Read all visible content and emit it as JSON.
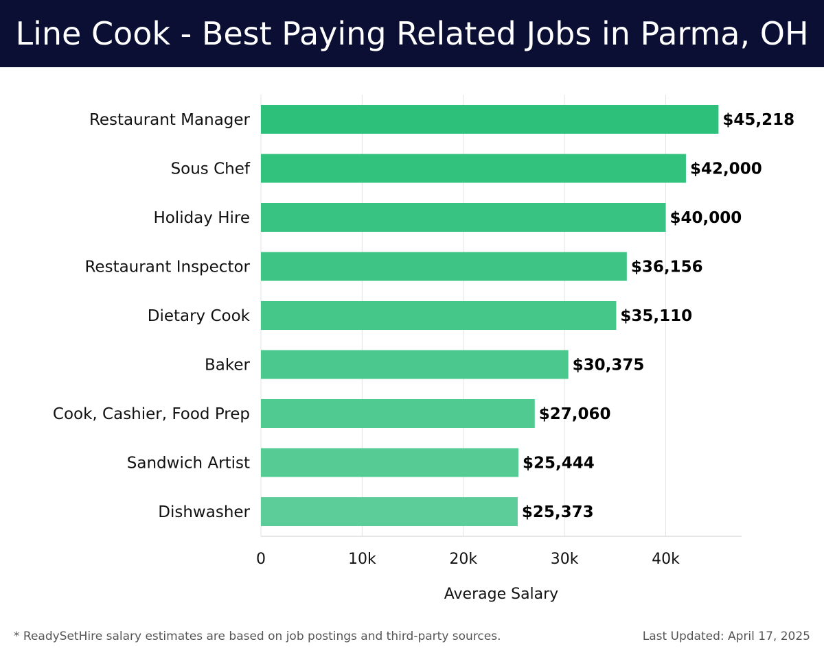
{
  "header": {
    "title": "Line Cook - Best Paying Related Jobs in Parma, OH"
  },
  "chart_data": {
    "type": "bar",
    "orientation": "horizontal",
    "categories": [
      "Restaurant Manager",
      "Sous Chef",
      "Holiday Hire",
      "Restaurant Inspector",
      "Dietary Cook",
      "Baker",
      "Cook, Cashier, Food Prep",
      "Sandwich Artist",
      "Dishwasher"
    ],
    "values": [
      45218,
      42000,
      40000,
      36156,
      35110,
      30375,
      27060,
      25444,
      25373
    ],
    "value_labels": [
      "$45,218",
      "$42,000",
      "$40,000",
      "$36,156",
      "$35,110",
      "$30,375",
      "$27,060",
      "$25,444",
      "$25,373"
    ],
    "xlabel": "Average Salary",
    "ylabel": "",
    "xlim": [
      0,
      47500
    ],
    "xticks": [
      0,
      10000,
      20000,
      30000,
      40000
    ],
    "xtick_labels": [
      "0",
      "10k",
      "20k",
      "30k",
      "40k"
    ],
    "grid": "vertical",
    "colors": {
      "bar_top": "#2cc07a",
      "bar_bottom": "#5ccd98",
      "header_bg": "#0b0f33"
    }
  },
  "footer": {
    "note": "* ReadySetHire salary estimates are based on job postings and third-party sources.",
    "updated": "Last Updated: April 17, 2025"
  }
}
